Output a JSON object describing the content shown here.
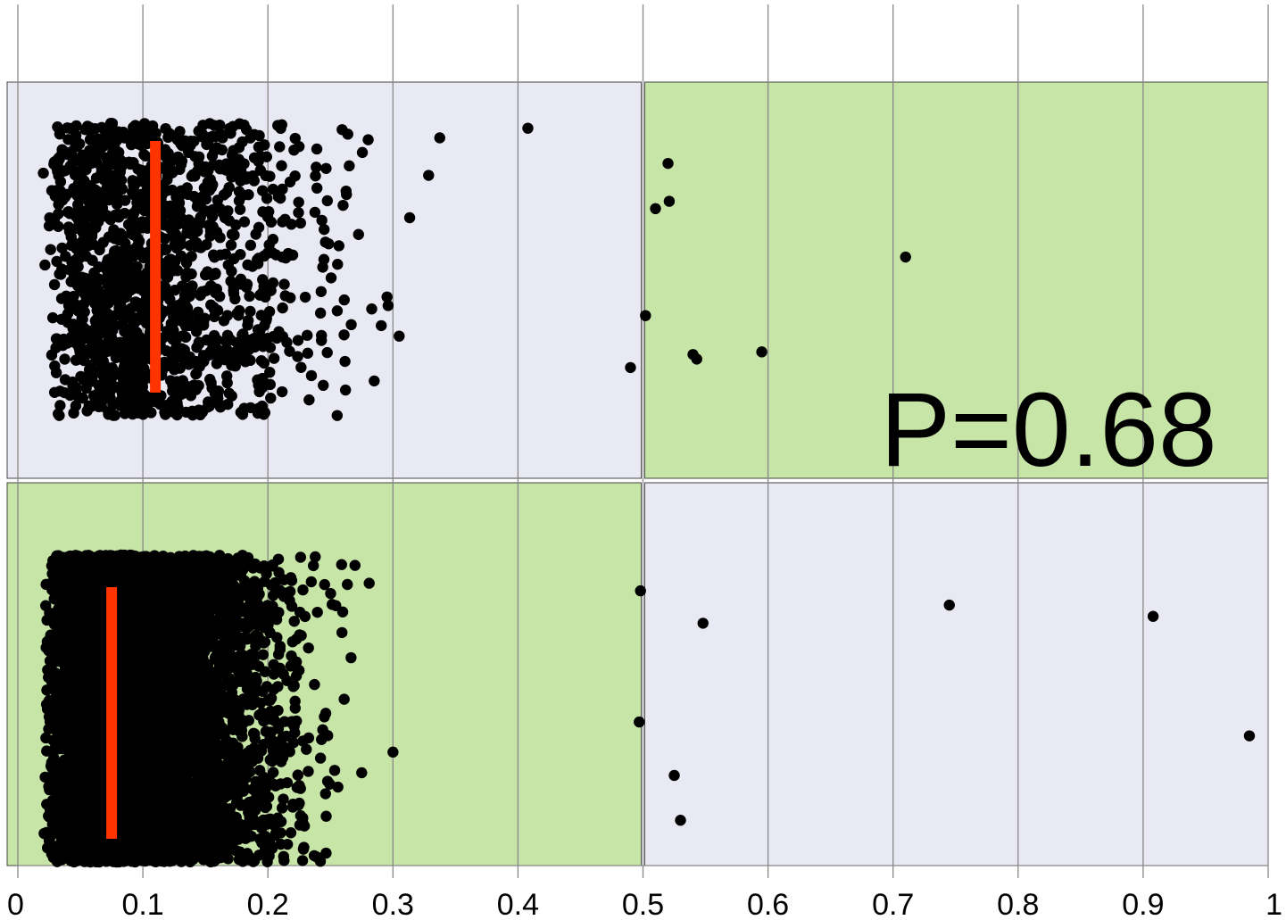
{
  "chart_data": {
    "type": "scatter",
    "title": "",
    "xlabel": "",
    "ylabel": "",
    "xlim": [
      0,
      1
    ],
    "x_ticks": [
      "0",
      "0.1",
      "0.2",
      "0.3",
      "0.4",
      "0.5",
      "0.6",
      "0.7",
      "0.8",
      "0.9",
      "1"
    ],
    "grid": "vertical",
    "annotation": "P=0.68",
    "colors": {
      "low_quadrant": "#e9e9f3",
      "high_quadrant": "#c8e5a8",
      "point": "#000000",
      "median_bar": "#ff3300",
      "grid": "#888888"
    },
    "series": [
      {
        "panel": "top",
        "threshold": 0.5,
        "n_points_approx": 1500,
        "median_marker": 0.11,
        "outliers_x": [
          0.52,
          0.543,
          0.54,
          0.595,
          0.71,
          0.521,
          0.51,
          0.502,
          0.49
        ]
      },
      {
        "panel": "bottom",
        "threshold": 0.5,
        "n_points_approx": 8000,
        "median_marker": 0.075,
        "outliers_x": [
          0.548,
          0.525,
          0.53,
          0.745,
          0.908,
          0.985,
          0.498,
          0.497
        ]
      }
    ]
  }
}
